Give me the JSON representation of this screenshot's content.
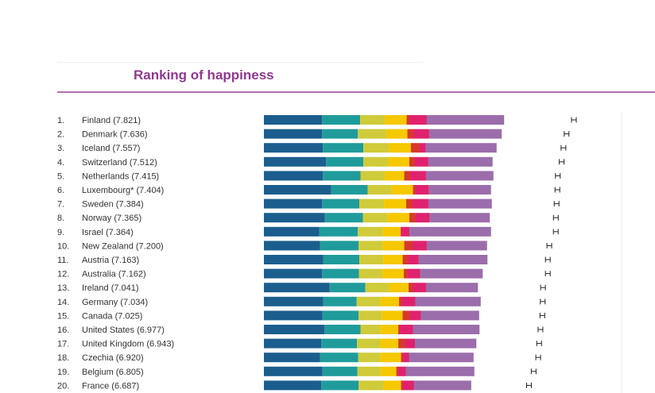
{
  "title": "Ranking of happiness",
  "chart_data": {
    "type": "bar",
    "stacked": true,
    "orientation": "horizontal",
    "colors": [
      "#1b5e8e",
      "#209b9b",
      "#cfcb3a",
      "#f5c800",
      "#d63a2a",
      "#e0226e",
      "#9b6dab"
    ],
    "rows": [
      {
        "rank": "1.",
        "label": "Finland (7.821)",
        "value": 7.821,
        "segments": [
          1.47,
          0.96,
          0.62,
          0.55,
          0.08,
          0.43,
          1.95
        ]
      },
      {
        "rank": "2.",
        "label": "Denmark (7.636)",
        "value": 7.636,
        "segments": [
          1.47,
          0.9,
          0.72,
          0.53,
          0.15,
          0.4,
          1.83
        ]
      },
      {
        "rank": "3.",
        "label": "Iceland (7.557)",
        "value": 7.557,
        "segments": [
          1.49,
          1.02,
          0.64,
          0.56,
          0.22,
          0.15,
          1.79
        ]
      },
      {
        "rank": "4.",
        "label": "Switzerland (7.512)",
        "value": 7.512,
        "segments": [
          1.57,
          0.94,
          0.63,
          0.53,
          0.14,
          0.34,
          1.62
        ]
      },
      {
        "rank": "5.",
        "label": "Netherlands (7.415)",
        "value": 7.415,
        "segments": [
          1.49,
          0.95,
          0.61,
          0.49,
          0.15,
          0.4,
          1.7
        ]
      },
      {
        "rank": "6.",
        "label": "Luxembourg* (7.404)",
        "value": 7.404,
        "segments": [
          1.7,
          0.92,
          0.6,
          0.54,
          0.06,
          0.34,
          1.57
        ]
      },
      {
        "rank": "7.",
        "label": "Sweden (7.384)",
        "value": 7.384,
        "segments": [
          1.47,
          0.94,
          0.62,
          0.56,
          0.16,
          0.4,
          1.6
        ]
      },
      {
        "rank": "8.",
        "label": "Norway (7.365)",
        "value": 7.365,
        "segments": [
          1.54,
          0.96,
          0.61,
          0.56,
          0.16,
          0.35,
          1.52
        ]
      },
      {
        "rank": "9.",
        "label": "Israel (7.364)",
        "value": 7.364,
        "segments": [
          1.4,
          0.97,
          0.63,
          0.45,
          0.01,
          0.21,
          2.06
        ]
      },
      {
        "rank": "10.",
        "label": "New Zealand (7.200)",
        "value": 7.2,
        "segments": [
          1.42,
          0.97,
          0.6,
          0.55,
          0.21,
          0.36,
          1.52
        ]
      },
      {
        "rank": "11.",
        "label": "Austria (7.163)",
        "value": 7.163,
        "segments": [
          1.5,
          0.91,
          0.6,
          0.49,
          0.14,
          0.26,
          1.74
        ]
      },
      {
        "rank": "12.",
        "label": "Australia (7.162)",
        "value": 7.162,
        "segments": [
          1.47,
          0.93,
          0.59,
          0.54,
          0.1,
          0.31,
          1.58
        ]
      },
      {
        "rank": "13.",
        "label": "Ireland (7.041)",
        "value": 7.041,
        "segments": [
          1.66,
          0.9,
          0.6,
          0.49,
          0.11,
          0.33,
          1.31
        ]
      },
      {
        "rank": "14.",
        "label": "Germany (7.034)",
        "value": 7.034,
        "segments": [
          1.5,
          0.84,
          0.6,
          0.47,
          0.07,
          0.34,
          1.65
        ]
      },
      {
        "rank": "15.",
        "label": "Canada (7.025)",
        "value": 7.025,
        "segments": [
          1.48,
          0.91,
          0.58,
          0.53,
          0.18,
          0.28,
          1.47
        ]
      },
      {
        "rank": "16.",
        "label": "United States (6.977)",
        "value": 6.977,
        "segments": [
          1.53,
          0.91,
          0.5,
          0.45,
          0.04,
          0.33,
          1.68
        ]
      },
      {
        "rank": "17.",
        "label": "United Kingdom (6.943)",
        "value": 6.943,
        "segments": [
          1.45,
          0.9,
          0.58,
          0.46,
          0.17,
          0.25,
          1.55
        ]
      },
      {
        "rank": "18.",
        "label": "Czechia (6.920)",
        "value": 6.92,
        "segments": [
          1.42,
          0.96,
          0.56,
          0.52,
          0.05,
          0.15,
          1.63
        ]
      },
      {
        "rank": "19.",
        "label": "Belgium (6.805)",
        "value": 6.805,
        "segments": [
          1.48,
          0.88,
          0.58,
          0.4,
          0.04,
          0.2,
          1.73
        ]
      },
      {
        "rank": "20.",
        "label": "France (6.687)",
        "value": 6.687,
        "segments": [
          1.45,
          0.94,
          0.63,
          0.44,
          0.04,
          0.28,
          1.45
        ]
      }
    ],
    "error_bar_half_width": 0.06,
    "xlim": [
      0,
      7.821
    ]
  }
}
